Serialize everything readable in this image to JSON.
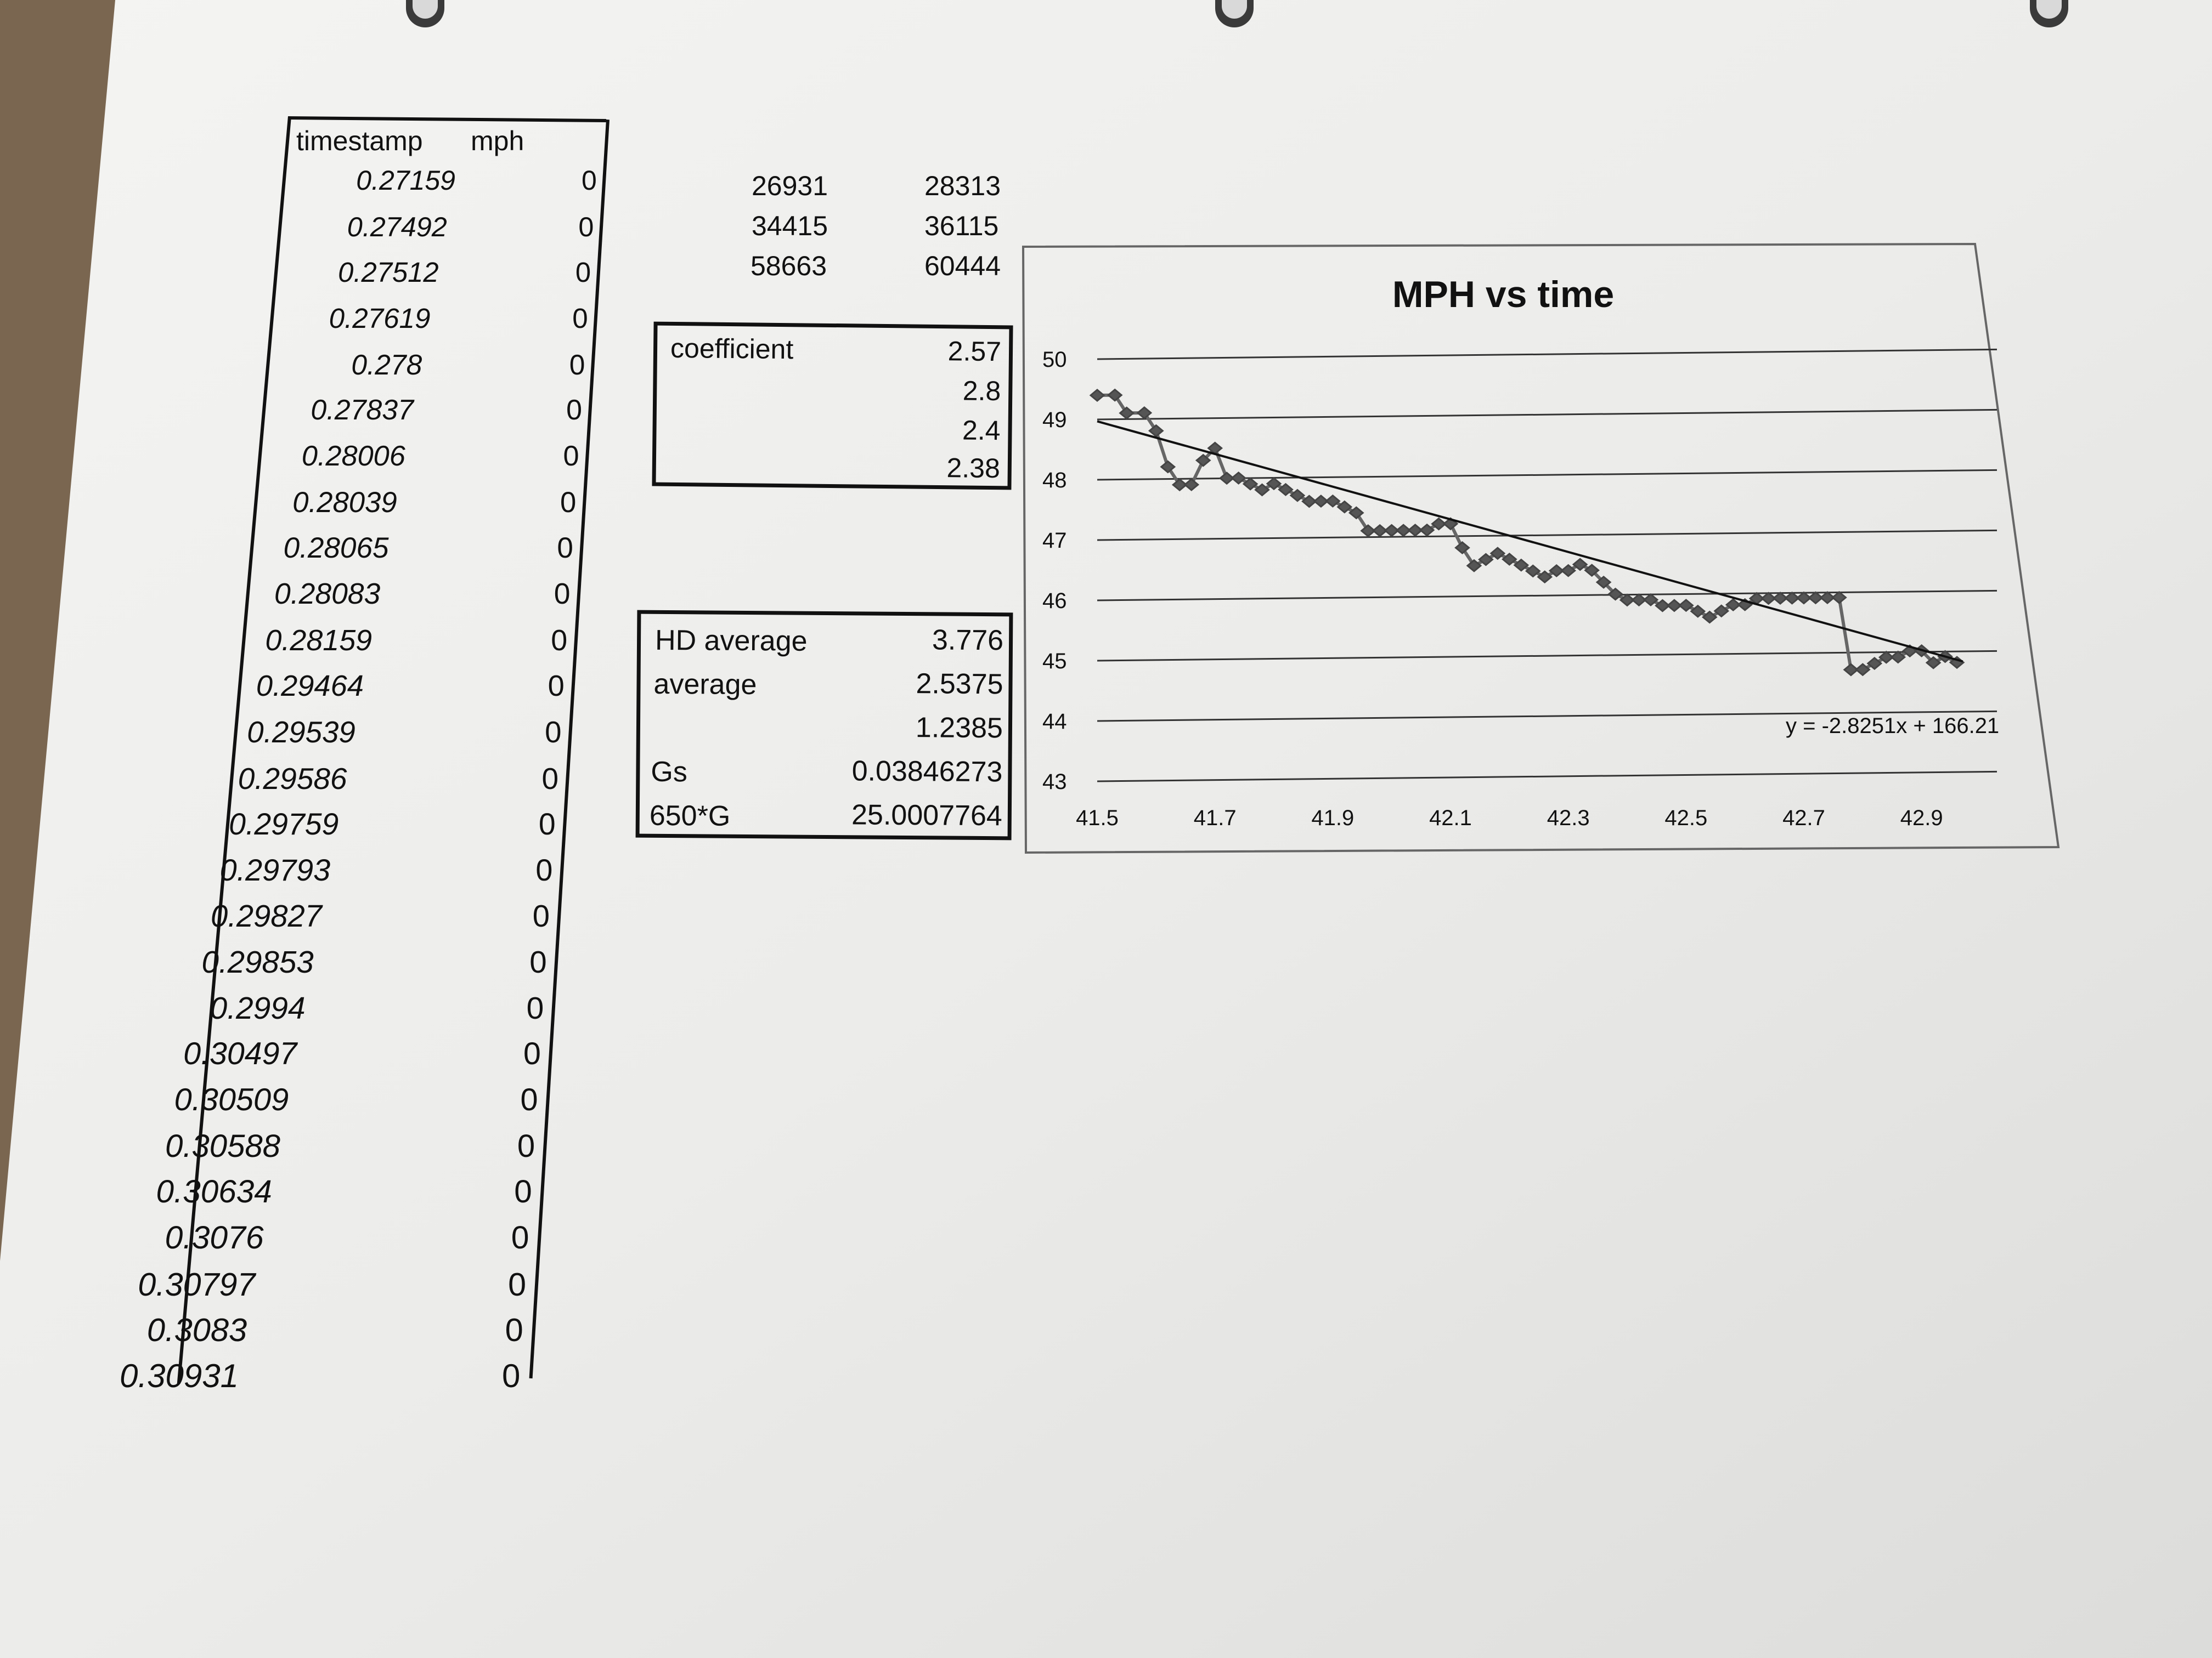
{
  "left_table": {
    "headers": [
      "timestamp",
      "mph"
    ],
    "rows": [
      [
        "0.27159",
        "0"
      ],
      [
        "0.27492",
        "0"
      ],
      [
        "0.27512",
        "0"
      ],
      [
        "0.27619",
        "0"
      ],
      [
        "0.278",
        "0"
      ],
      [
        "0.27837",
        "0"
      ],
      [
        "0.28006",
        "0"
      ],
      [
        "0.28039",
        "0"
      ],
      [
        "0.28065",
        "0"
      ],
      [
        "0.28083",
        "0"
      ],
      [
        "0.28159",
        "0"
      ],
      [
        "0.29464",
        "0"
      ],
      [
        "0.29539",
        "0"
      ],
      [
        "0.29586",
        "0"
      ],
      [
        "0.29759",
        "0"
      ],
      [
        "0.29793",
        "0"
      ],
      [
        "0.29827",
        "0"
      ],
      [
        "0.29853",
        "0"
      ],
      [
        "0.2994",
        "0"
      ],
      [
        "0.30497",
        "0"
      ],
      [
        "0.30509",
        "0"
      ],
      [
        "0.30588",
        "0"
      ],
      [
        "0.30634",
        "0"
      ],
      [
        "0.3076",
        "0"
      ],
      [
        "0.30797",
        "0"
      ],
      [
        "0.3083",
        "0"
      ],
      [
        "0.30931",
        "0"
      ]
    ]
  },
  "pairs": [
    [
      "26931",
      "28313"
    ],
    [
      "34415",
      "36115"
    ],
    [
      "58663",
      "60444"
    ]
  ],
  "coefficient_box": {
    "label": "coefficient",
    "values": [
      "2.57",
      "2.8",
      "2.4",
      "2.38"
    ]
  },
  "stats_box": {
    "rows": [
      [
        "HD average",
        "3.776"
      ],
      [
        "average",
        "2.5375"
      ],
      [
        "",
        "1.2385"
      ],
      [
        "Gs",
        "0.03846273"
      ],
      [
        "650*G",
        "25.0007764"
      ]
    ]
  },
  "chart_data": {
    "type": "scatter",
    "title": "MPH vs time",
    "xlabel": "",
    "ylabel": "",
    "xlim": [
      41.5,
      43.0
    ],
    "ylim": [
      43,
      50
    ],
    "xticks": [
      "41.5",
      "41.7",
      "41.9",
      "42.1",
      "42.3",
      "42.5",
      "42.7",
      "42.9"
    ],
    "yticks": [
      "43",
      "44",
      "45",
      "46",
      "47",
      "48",
      "49",
      "50"
    ],
    "grid": true,
    "trendline": {
      "equation": "y = -2.8251x + 166.21",
      "slope": -2.8251,
      "intercept": 166.21
    },
    "series": [
      {
        "x": [
          41.5,
          41.53,
          41.55,
          41.58,
          41.6,
          41.62,
          41.64,
          41.66,
          41.68,
          41.7,
          41.72,
          41.74,
          41.76,
          41.78,
          41.8,
          41.82,
          41.84,
          41.86,
          41.88,
          41.9,
          41.92,
          41.94,
          41.96,
          41.98,
          42.0,
          42.02,
          42.04,
          42.06,
          42.08,
          42.1,
          42.12,
          42.14,
          42.16,
          42.18,
          42.2,
          42.22,
          42.24,
          42.26,
          42.28,
          42.3,
          42.32,
          42.34,
          42.36,
          42.38,
          42.4,
          42.42,
          42.44,
          42.46,
          42.48,
          42.5,
          42.52,
          42.54,
          42.56,
          42.58,
          42.6,
          42.62,
          42.64,
          42.66,
          42.68,
          42.7,
          42.72,
          42.74,
          42.76,
          42.78,
          42.8,
          42.82,
          42.84,
          42.86,
          42.88,
          42.9,
          42.92,
          42.94,
          42.96
        ],
        "y": [
          49.4,
          49.4,
          49.1,
          49.1,
          48.8,
          48.2,
          47.9,
          47.9,
          48.3,
          48.5,
          48.0,
          48.0,
          47.9,
          47.8,
          47.9,
          47.8,
          47.7,
          47.6,
          47.6,
          47.6,
          47.5,
          47.4,
          47.1,
          47.1,
          47.1,
          47.1,
          47.1,
          47.1,
          47.2,
          47.2,
          46.8,
          46.5,
          46.6,
          46.7,
          46.6,
          46.5,
          46.4,
          46.3,
          46.4,
          46.4,
          46.5,
          46.4,
          46.2,
          46.0,
          45.9,
          45.9,
          45.9,
          45.8,
          45.8,
          45.8,
          45.7,
          45.6,
          45.7,
          45.8,
          45.8,
          45.9,
          45.9,
          45.9,
          45.9,
          45.9,
          45.9,
          45.9,
          45.9,
          44.7,
          44.7,
          44.8,
          44.9,
          44.9,
          45.0,
          45.0,
          44.8,
          44.9,
          44.8
        ]
      }
    ]
  }
}
